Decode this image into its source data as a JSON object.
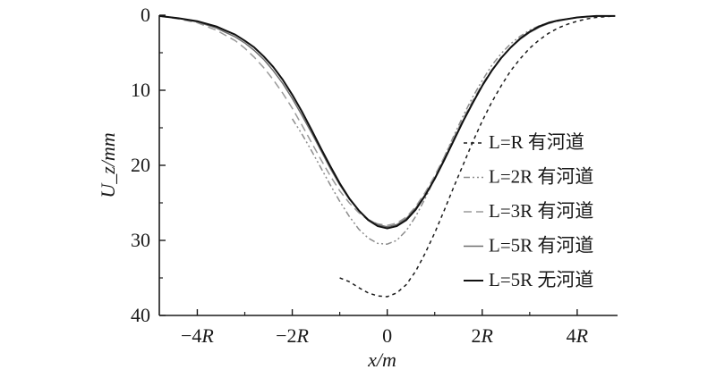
{
  "chart_data": {
    "type": "line",
    "xlabel": "x/m",
    "ylabel": "U_z/mm",
    "xlim": [
      -4.8,
      4.85
    ],
    "ylim": [
      0,
      40
    ],
    "y_inverted": true,
    "x_unit": "R",
    "xticks": [
      -4,
      -2,
      0,
      2,
      4
    ],
    "xtick_labels": [
      "−4R",
      "−2R",
      "0",
      "2R",
      "4R"
    ],
    "yticks": [
      0,
      10,
      20,
      30,
      40
    ],
    "ytick_labels": [
      "0",
      "10",
      "20",
      "30",
      "40"
    ],
    "legend_position": "right",
    "grid": false,
    "series": [
      {
        "name": "L=R 有河道",
        "color": "#1a1a1a",
        "dash": "4,4",
        "x": [
          -1.0,
          -0.8,
          -0.6,
          -0.4,
          -0.2,
          0.0,
          0.2,
          0.4,
          0.6,
          0.8,
          1.0,
          1.2,
          1.4,
          1.6,
          1.8,
          2.0,
          2.2,
          2.4,
          2.6,
          2.8,
          3.0,
          3.2,
          3.4,
          3.6,
          3.8,
          4.0,
          4.2,
          4.4,
          4.6,
          4.8
        ],
        "y": [
          35.0,
          35.5,
          36.3,
          37.0,
          37.4,
          37.5,
          37.0,
          35.9,
          34.1,
          31.7,
          29.0,
          26.0,
          22.9,
          19.9,
          16.9,
          14.1,
          11.6,
          9.4,
          7.4,
          5.8,
          4.4,
          3.3,
          2.4,
          1.7,
          1.2,
          0.8,
          0.5,
          0.3,
          0.2,
          0.1
        ]
      },
      {
        "name": "L=2R 有河道",
        "color": "#8c8c8c",
        "dash": "7,3,2,3,2,3",
        "x": [
          -2.0,
          -1.8,
          -1.6,
          -1.4,
          -1.2,
          -1.0,
          -0.8,
          -0.6,
          -0.4,
          -0.2,
          0.0,
          0.2,
          0.4,
          0.6,
          0.8,
          1.0,
          1.2,
          1.4,
          1.6,
          1.8,
          2.0,
          2.2,
          2.4,
          2.6,
          2.8,
          3.0,
          3.2,
          3.4,
          3.6,
          3.8,
          4.0,
          4.2,
          4.4,
          4.6,
          4.8
        ],
        "y": [
          13.8,
          15.8,
          18.0,
          20.3,
          22.6,
          24.8,
          26.8,
          28.5,
          29.7,
          30.4,
          30.5,
          30.0,
          28.7,
          26.8,
          24.4,
          21.7,
          18.9,
          16.1,
          13.4,
          10.9,
          8.7,
          6.7,
          5.1,
          3.8,
          2.8,
          2.0,
          1.4,
          1.0,
          0.7,
          0.5,
          0.3,
          0.2,
          0.1,
          0.1,
          0.1
        ]
      },
      {
        "name": "L=3R 有河道",
        "color": "#9a9a9a",
        "dash": "9,5",
        "x": [
          -4.8,
          -4.4,
          -4.0,
          -3.6,
          -3.2,
          -3.0,
          -2.8,
          -2.6,
          -2.4,
          -2.2,
          -2.0,
          -1.8,
          -1.6,
          -1.4,
          -1.2,
          -1.0,
          -0.8,
          -0.6,
          -0.4,
          -0.2,
          0.0,
          0.2,
          0.4,
          0.6,
          0.8,
          1.0,
          1.2,
          1.4,
          1.6,
          1.8,
          2.0,
          2.2,
          2.4,
          2.6,
          2.8,
          3.0,
          3.2,
          3.4,
          3.6,
          3.8,
          4.0,
          4.2,
          4.4,
          4.6,
          4.8
        ],
        "y": [
          0.1,
          0.5,
          1.0,
          2.0,
          3.4,
          4.4,
          5.6,
          7.0,
          8.6,
          10.4,
          12.4,
          14.6,
          16.9,
          19.2,
          21.4,
          23.4,
          25.0,
          26.3,
          27.3,
          27.8,
          28.0,
          27.7,
          26.9,
          25.5,
          23.6,
          21.4,
          18.9,
          16.3,
          13.8,
          11.4,
          9.2,
          7.3,
          5.6,
          4.3,
          3.2,
          2.3,
          1.6,
          1.1,
          0.8,
          0.5,
          0.3,
          0.2,
          0.1,
          0.1,
          0.1
        ]
      },
      {
        "name": "L=5R 有河道",
        "color": "#6e6e6e",
        "dash": "",
        "x": [
          -4.8,
          -4.4,
          -4.0,
          -3.6,
          -3.2,
          -3.0,
          -2.8,
          -2.6,
          -2.4,
          -2.2,
          -2.0,
          -1.8,
          -1.6,
          -1.4,
          -1.2,
          -1.0,
          -0.8,
          -0.6,
          -0.4,
          -0.2,
          0.0,
          0.2,
          0.4,
          0.6,
          0.8,
          1.0,
          1.2,
          1.4,
          1.6,
          1.8,
          2.0,
          2.2,
          2.4,
          2.6,
          2.8,
          3.0,
          3.2,
          3.4,
          3.6,
          3.8,
          4.0,
          4.2,
          4.4,
          4.6,
          4.8
        ],
        "y": [
          0.1,
          0.4,
          0.9,
          1.7,
          2.9,
          3.7,
          4.7,
          5.9,
          7.4,
          9.1,
          11.1,
          13.3,
          15.6,
          18.0,
          20.4,
          22.6,
          24.5,
          26.0,
          27.2,
          27.9,
          28.2,
          27.9,
          27.1,
          25.7,
          23.9,
          21.7,
          19.2,
          16.6,
          14.0,
          11.6,
          9.4,
          7.4,
          5.7,
          4.3,
          3.2,
          2.3,
          1.6,
          1.1,
          0.7,
          0.5,
          0.3,
          0.2,
          0.1,
          0.1,
          0.1
        ]
      },
      {
        "name": "L=5R 无河道",
        "color": "#111111",
        "dash": "",
        "x": [
          -4.8,
          -4.4,
          -4.0,
          -3.6,
          -3.2,
          -3.0,
          -2.8,
          -2.6,
          -2.4,
          -2.2,
          -2.0,
          -1.8,
          -1.6,
          -1.4,
          -1.2,
          -1.0,
          -0.8,
          -0.6,
          -0.4,
          -0.2,
          0.0,
          0.2,
          0.4,
          0.6,
          0.8,
          1.0,
          1.2,
          1.4,
          1.6,
          1.8,
          2.0,
          2.2,
          2.4,
          2.6,
          2.8,
          3.0,
          3.2,
          3.4,
          3.6,
          3.8,
          4.0,
          4.2,
          4.4,
          4.6,
          4.8
        ],
        "y": [
          0.1,
          0.4,
          0.8,
          1.5,
          2.6,
          3.4,
          4.3,
          5.5,
          6.9,
          8.6,
          10.6,
          12.8,
          15.2,
          17.7,
          20.1,
          22.4,
          24.4,
          26.0,
          27.3,
          28.1,
          28.4,
          28.1,
          27.3,
          25.9,
          24.0,
          21.8,
          19.3,
          16.7,
          14.1,
          11.7,
          9.4,
          7.4,
          5.7,
          4.3,
          3.1,
          2.2,
          1.5,
          1.0,
          0.7,
          0.5,
          0.3,
          0.2,
          0.1,
          0.1,
          0.1
        ]
      }
    ]
  }
}
